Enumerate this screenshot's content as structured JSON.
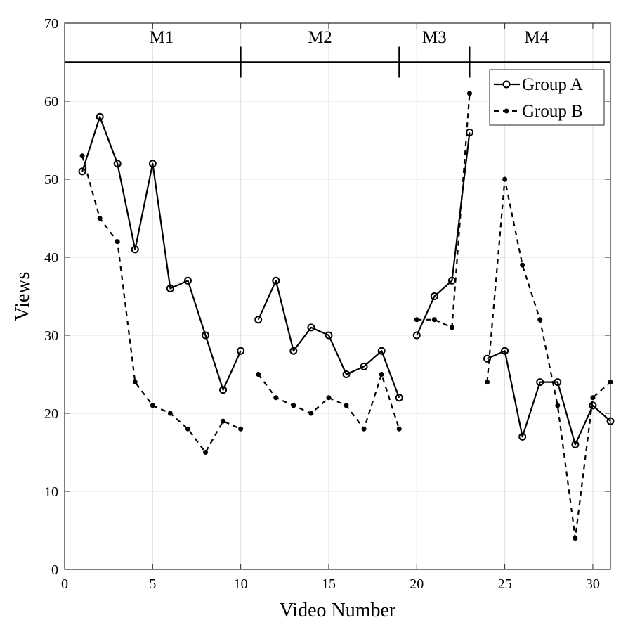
{
  "chart_data": {
    "type": "line",
    "xlabel": "Video Number",
    "ylabel": "Views",
    "xlim": [
      0,
      31
    ],
    "ylim": [
      0,
      70
    ],
    "xticks": [
      0,
      5,
      10,
      15,
      20,
      25,
      30
    ],
    "yticks": [
      0,
      10,
      20,
      30,
      40,
      50,
      60,
      70
    ],
    "grid": true,
    "legend_position": "top-right",
    "modules": {
      "line_y": 65,
      "dividers": [
        10,
        19,
        23
      ],
      "labels": [
        {
          "text": "M1",
          "x": 5.5
        },
        {
          "text": "M2",
          "x": 14.5
        },
        {
          "text": "M3",
          "x": 21
        },
        {
          "text": "M4",
          "x": 26.8
        }
      ]
    },
    "series": [
      {
        "name": "Group A",
        "style": "solid",
        "marker": "open-circle",
        "segments": [
          {
            "x": [
              1,
              2,
              3,
              4,
              5,
              6,
              7,
              8,
              9,
              10
            ],
            "y": [
              51,
              58,
              52,
              41,
              52,
              36,
              37,
              30,
              23,
              28
            ]
          },
          {
            "x": [
              11,
              12,
              13,
              14,
              15,
              16,
              17,
              18,
              19
            ],
            "y": [
              32,
              37,
              28,
              31,
              30,
              25,
              26,
              28,
              22
            ]
          },
          {
            "x": [
              20,
              21,
              22,
              23
            ],
            "y": [
              30,
              35,
              37,
              56
            ]
          },
          {
            "x": [
              24,
              25,
              26,
              27,
              28,
              29,
              30,
              31
            ],
            "y": [
              27,
              28,
              17,
              24,
              24,
              16,
              21,
              19
            ]
          }
        ]
      },
      {
        "name": "Group B",
        "style": "dashed",
        "marker": "filled-dot",
        "segments": [
          {
            "x": [
              1,
              2,
              3,
              4,
              5,
              6,
              7,
              8,
              9,
              10
            ],
            "y": [
              53,
              45,
              42,
              24,
              21,
              20,
              18,
              15,
              19,
              18
            ]
          },
          {
            "x": [
              11,
              12,
              13,
              14,
              15,
              16,
              17,
              18,
              19
            ],
            "y": [
              25,
              22,
              21,
              20,
              22,
              21,
              18,
              25,
              18
            ]
          },
          {
            "x": [
              20,
              21,
              22,
              23
            ],
            "y": [
              32,
              32,
              31,
              61
            ]
          },
          {
            "x": [
              24,
              25,
              26,
              27,
              28,
              29,
              30,
              31
            ],
            "y": [
              24,
              50,
              39,
              32,
              21,
              4,
              22,
              24
            ]
          }
        ]
      }
    ]
  }
}
